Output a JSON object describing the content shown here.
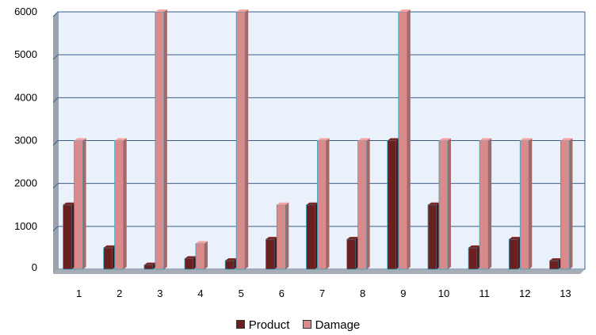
{
  "chart_data": {
    "type": "bar",
    "categories": [
      "1",
      "2",
      "3",
      "4",
      "5",
      "6",
      "7",
      "8",
      "9",
      "10",
      "11",
      "12",
      "13"
    ],
    "series": [
      {
        "name": "Product",
        "color": "#6b1f1f",
        "values": [
          1500,
          500,
          100,
          250,
          200,
          700,
          1500,
          700,
          3000,
          1500,
          500,
          700,
          200
        ]
      },
      {
        "name": "Damage",
        "color": "#d98b8b",
        "values": [
          3000,
          3000,
          6000,
          600,
          6000,
          1500,
          3000,
          3000,
          6000,
          3000,
          3000,
          3000,
          3000
        ]
      }
    ],
    "ylim": [
      0,
      6000
    ],
    "yticks": [
      0,
      1000,
      2000,
      3000,
      4000,
      5000,
      6000
    ],
    "grid": true,
    "legend_position": "bottom",
    "plot_background": "#eaf1fa",
    "grid_color": "#3a5c8c"
  }
}
